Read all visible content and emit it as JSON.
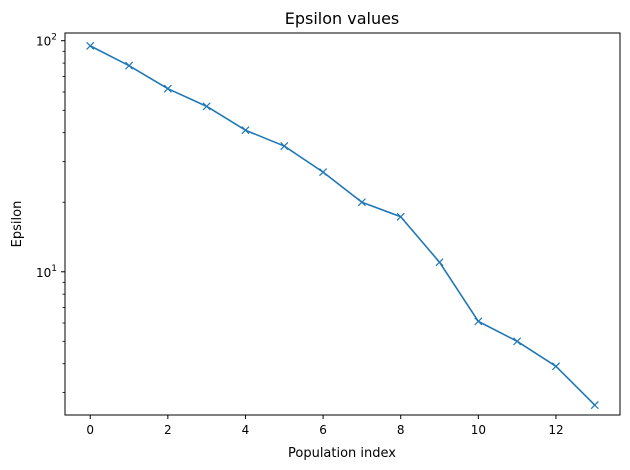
{
  "chart_data": {
    "type": "line",
    "title": "Epsilon values",
    "xlabel": "Population index",
    "ylabel": "Epsilon",
    "yscale": "log",
    "xlim": [
      -0.65,
      13.65
    ],
    "ylim": [
      2.4,
      108
    ],
    "grid": false,
    "color": "#1f77b4",
    "marker": "x",
    "x_ticks": [
      0,
      2,
      4,
      6,
      8,
      10,
      12
    ],
    "y_major_ticks": [
      {
        "value": 10,
        "base": "10",
        "exp": "1"
      },
      {
        "value": 100,
        "base": "10",
        "exp": "2"
      }
    ],
    "y_minor_ticks": [
      3,
      4,
      5,
      6,
      7,
      8,
      9,
      20,
      30,
      40,
      50,
      60,
      70,
      80,
      90
    ],
    "series": [
      {
        "x": [
          0,
          1,
          2,
          3,
          4,
          5,
          6,
          7,
          8,
          9,
          10,
          11,
          12,
          13
        ],
        "y": [
          95,
          78,
          62,
          52,
          41,
          35,
          27,
          20,
          17.3,
          11,
          6.1,
          5.0,
          3.9,
          2.65
        ]
      }
    ]
  }
}
